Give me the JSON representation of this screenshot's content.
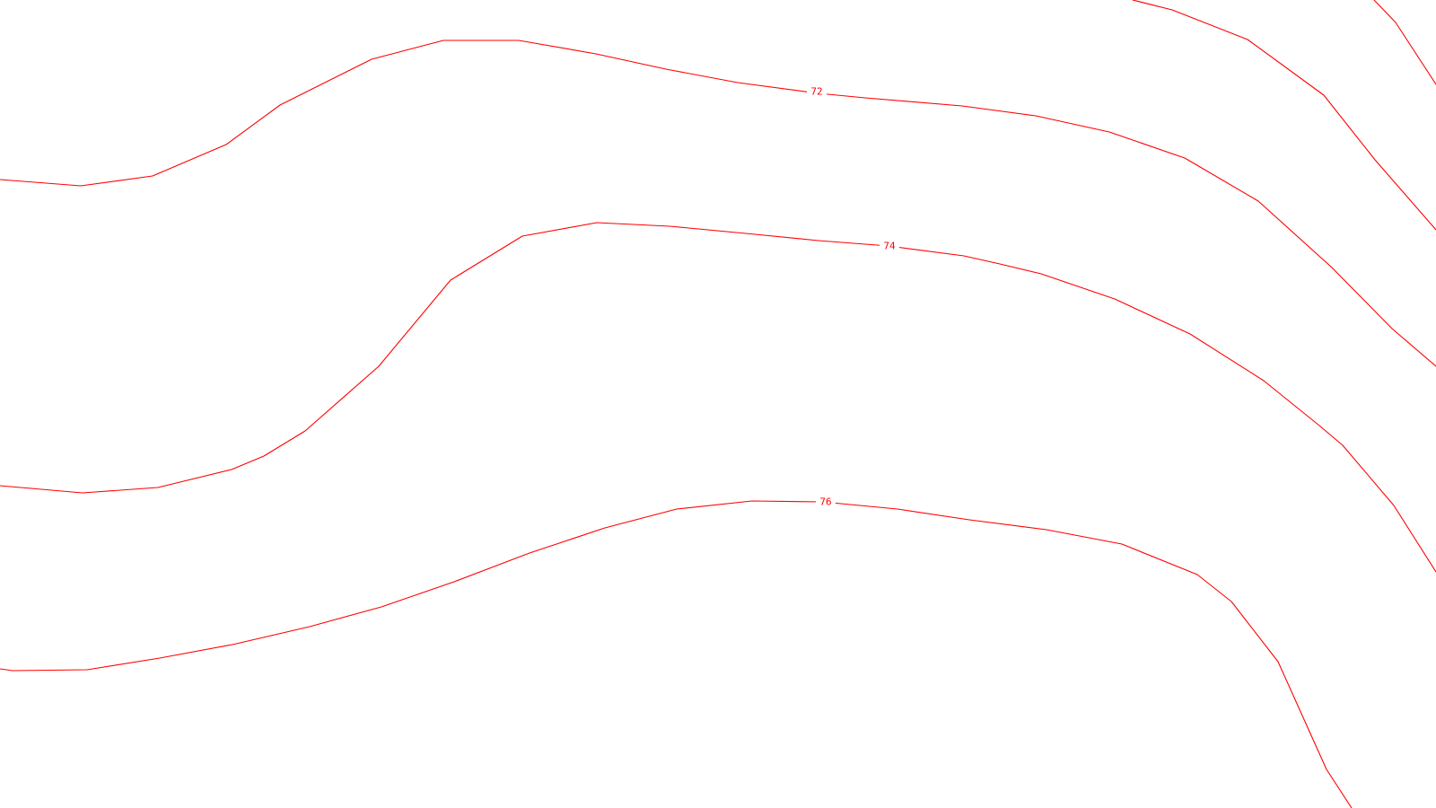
{
  "map": {
    "colors": {
      "background": "#ffffff",
      "contour": "#ff0000"
    },
    "contours": [
      {
        "id": "contour-72",
        "label": "72"
      },
      {
        "id": "contour-74",
        "label": "74"
      },
      {
        "id": "contour-76",
        "label": "76"
      },
      {
        "id": "contour-upper-right-a",
        "label": ""
      },
      {
        "id": "contour-upper-right-b",
        "label": ""
      }
    ]
  }
}
